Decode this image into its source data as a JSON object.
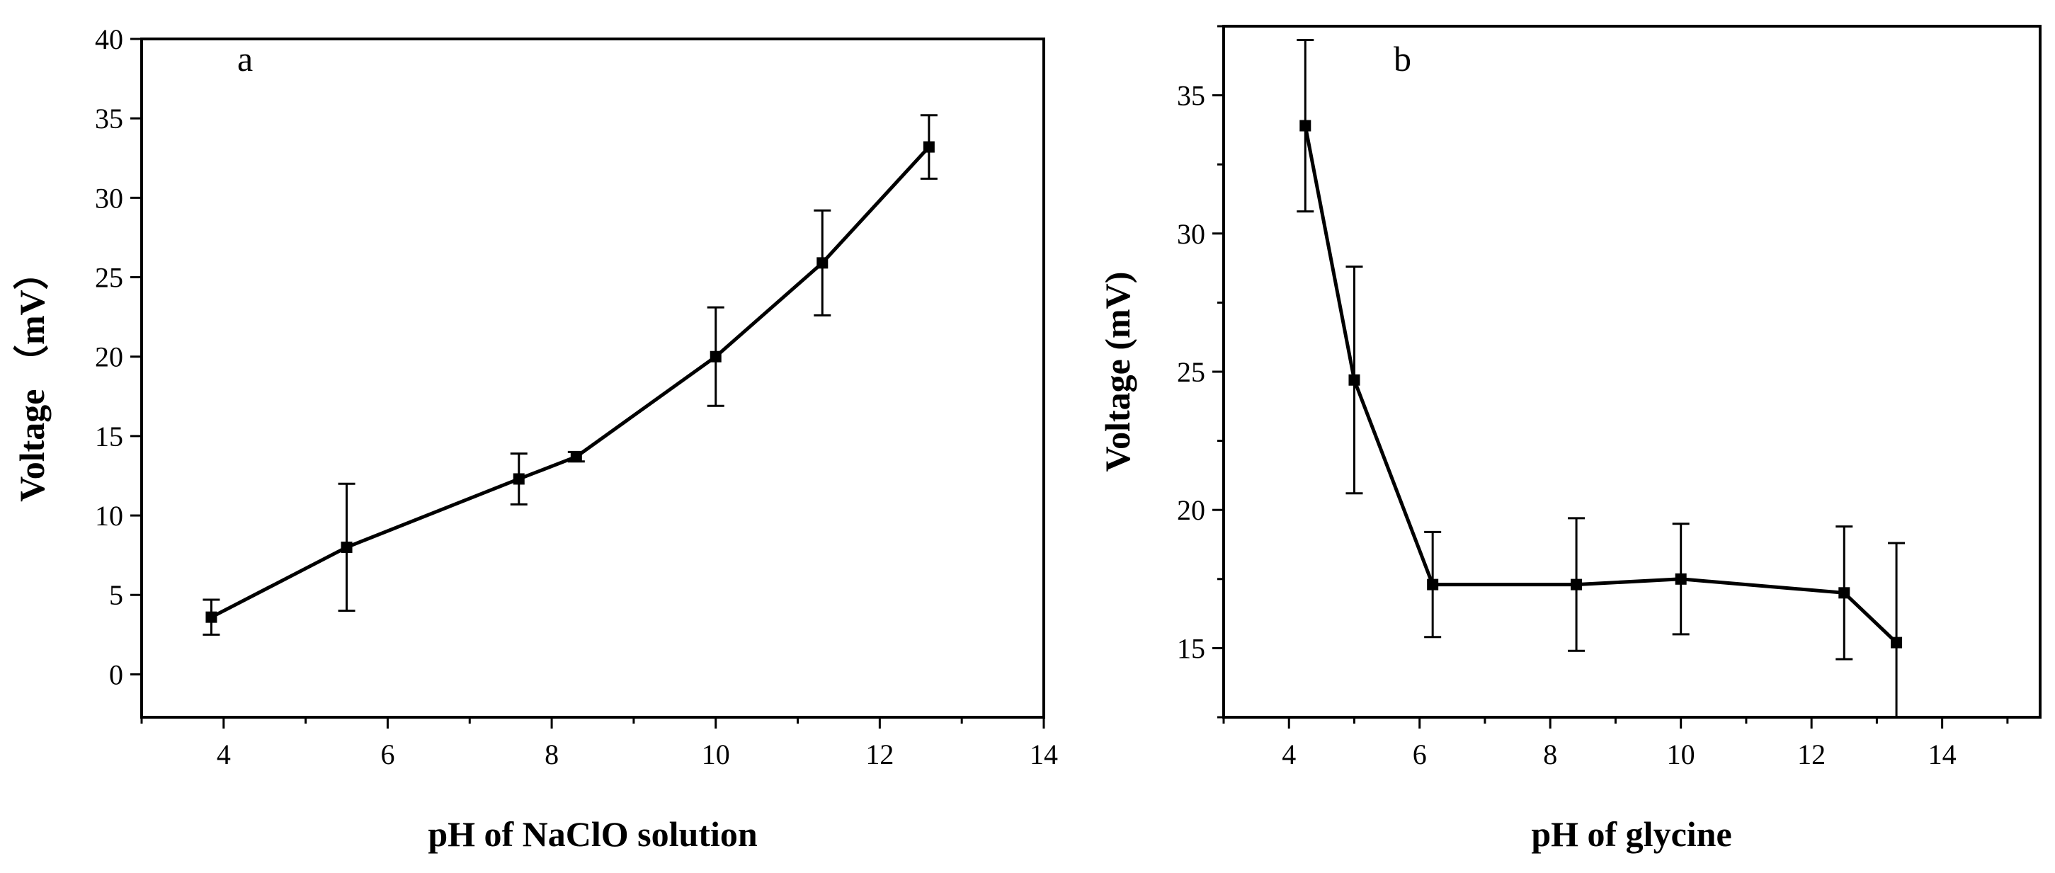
{
  "chart_data": [
    {
      "type": "line",
      "panel_label": "a",
      "xlabel": "pH of NaClO solution",
      "ylabel": "Voltage （mV）",
      "xlim": [
        3,
        14
      ],
      "ylim": [
        -2.7,
        40
      ],
      "xticks": [
        4,
        6,
        8,
        10,
        12,
        14
      ],
      "yticks": [
        0,
        5,
        10,
        15,
        20,
        25,
        30,
        35,
        40
      ],
      "x_minor_step": 1,
      "y_minor_step": 0,
      "series": [
        {
          "name": "voltage",
          "x": [
            3.85,
            5.5,
            7.6,
            8.3,
            10.0,
            11.3,
            12.6
          ],
          "y": [
            3.6,
            8.0,
            12.3,
            13.7,
            20.0,
            25.9,
            33.2
          ],
          "err": [
            1.1,
            4.0,
            1.6,
            0.3,
            3.1,
            3.3,
            2.0
          ]
        }
      ]
    },
    {
      "type": "line",
      "panel_label": "b",
      "xlabel": "pH of glycine",
      "ylabel": "Voltage (mV)",
      "xlim": [
        3,
        15.5
      ],
      "ylim": [
        12.5,
        37.5
      ],
      "xticks": [
        4,
        6,
        8,
        10,
        12,
        14
      ],
      "yticks": [
        15,
        20,
        25,
        30,
        35
      ],
      "x_minor_step": 1,
      "y_minor_step": 2.5,
      "series": [
        {
          "name": "voltage",
          "x": [
            4.25,
            5.0,
            6.2,
            8.4,
            10.0,
            12.5,
            13.3
          ],
          "y": [
            33.9,
            24.7,
            17.3,
            17.3,
            17.5,
            17.0,
            15.2
          ],
          "err": [
            3.1,
            4.1,
            1.9,
            2.4,
            2.0,
            2.4,
            3.6
          ]
        }
      ]
    }
  ]
}
